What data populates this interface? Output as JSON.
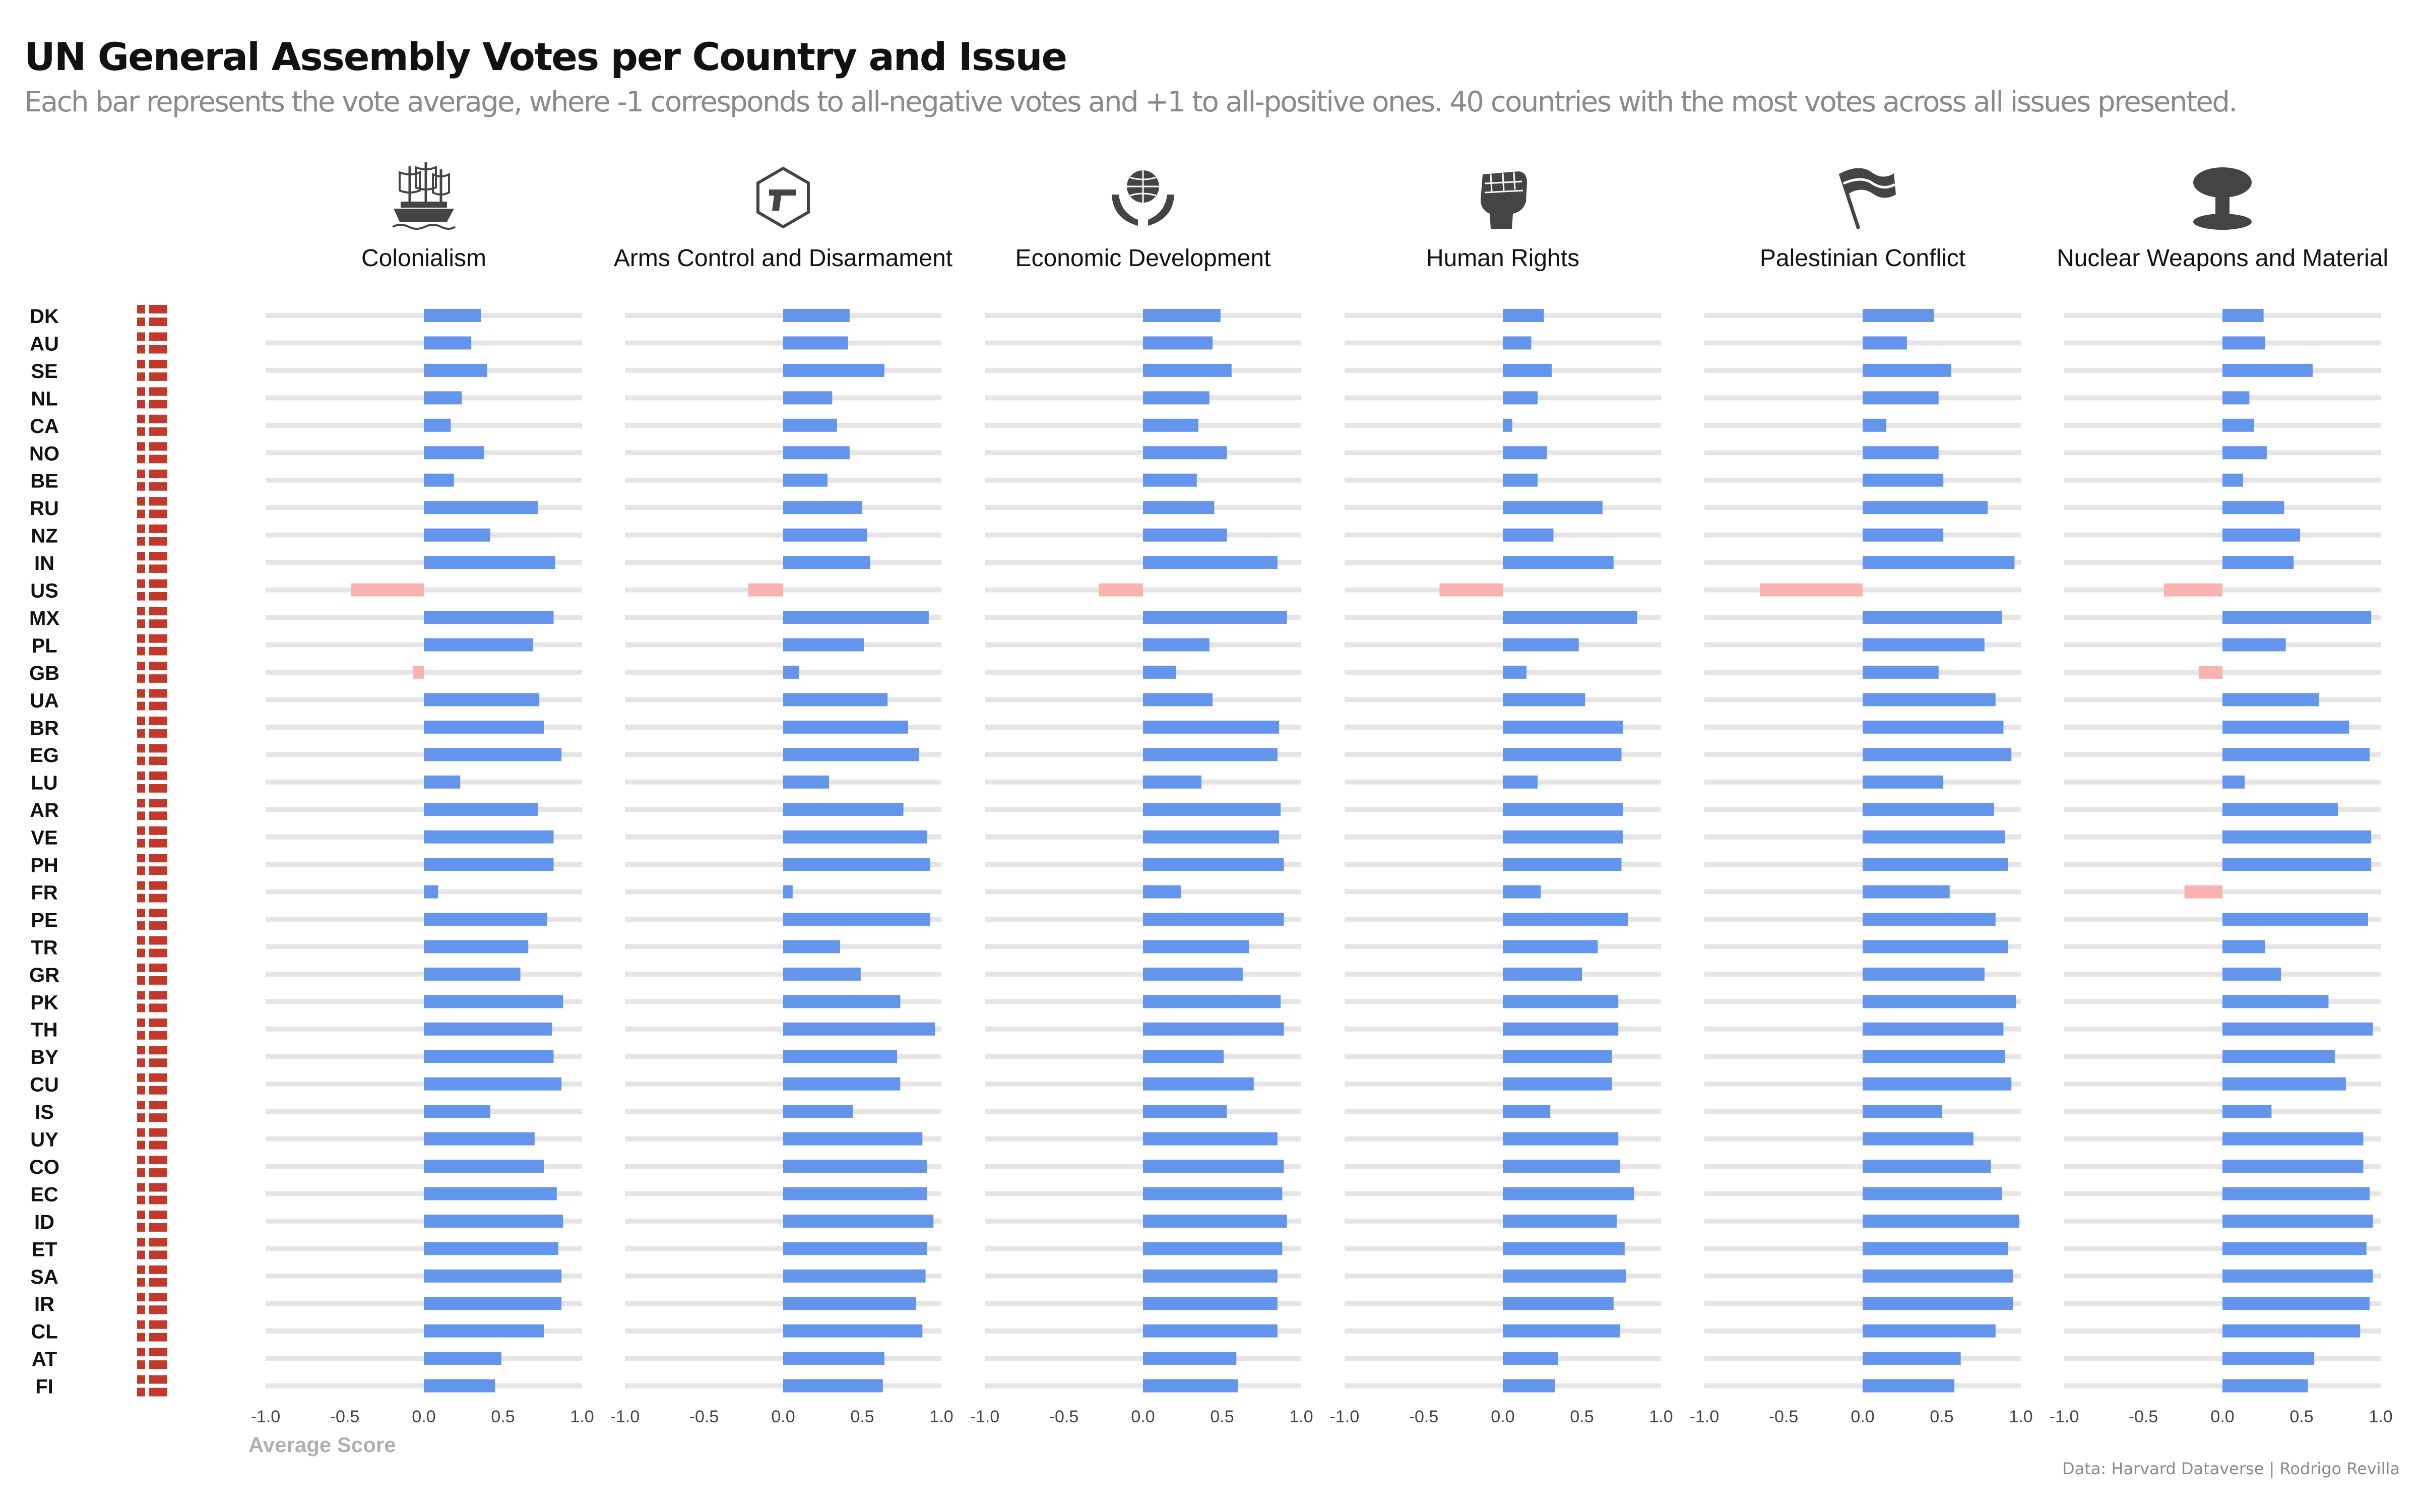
{
  "chart_data": {
    "type": "bar",
    "orientation": "horizontal",
    "title": "UN General Assembly Votes per Country and Issue",
    "subtitle": "Each bar represents the vote average, where -1 corresponds to all-negative votes and +1 to all-positive ones. 40 countries with the most votes across all issues presented.",
    "xlabel": "Average Score",
    "caption": "Data: Harvard Dataverse | Rodrigo Revilla",
    "xlim": [
      -1.0,
      1.0
    ],
    "xticks": [
      "-1.0",
      "-0.5",
      "0.0",
      "0.5",
      "1.0"
    ],
    "colors": {
      "positive": "#6495ED",
      "negative": "#F9B4B1",
      "track": "#E5E5E5"
    },
    "categories": [
      "DK",
      "AU",
      "SE",
      "NL",
      "CA",
      "NO",
      "BE",
      "RU",
      "NZ",
      "IN",
      "US",
      "MX",
      "PL",
      "GB",
      "UA",
      "BR",
      "EG",
      "LU",
      "AR",
      "VE",
      "PH",
      "FR",
      "PE",
      "TR",
      "GR",
      "PK",
      "TH",
      "BY",
      "CU",
      "IS",
      "UY",
      "CO",
      "EC",
      "ID",
      "ET",
      "SA",
      "IR",
      "CL",
      "AT",
      "FI"
    ],
    "series": [
      {
        "name": "Colonialism",
        "icon": "ship-icon",
        "values": [
          0.36,
          0.3,
          0.4,
          0.24,
          0.17,
          0.38,
          0.19,
          0.72,
          0.42,
          0.83,
          -0.46,
          0.82,
          0.69,
          -0.07,
          0.73,
          0.76,
          0.87,
          0.23,
          0.72,
          0.82,
          0.82,
          0.09,
          0.78,
          0.66,
          0.61,
          0.88,
          0.81,
          0.82,
          0.87,
          0.42,
          0.7,
          0.76,
          0.84,
          0.88,
          0.85,
          0.87,
          0.87,
          0.76,
          0.49,
          0.45
        ]
      },
      {
        "name": "Arms Control and Disarmament",
        "icon": "gun-icon",
        "values": [
          0.42,
          0.41,
          0.64,
          0.31,
          0.34,
          0.42,
          0.28,
          0.5,
          0.53,
          0.55,
          -0.22,
          0.92,
          0.51,
          0.1,
          0.66,
          0.79,
          0.86,
          0.29,
          0.76,
          0.91,
          0.93,
          0.06,
          0.93,
          0.36,
          0.49,
          0.74,
          0.96,
          0.72,
          0.74,
          0.44,
          0.88,
          0.91,
          0.91,
          0.95,
          0.91,
          0.9,
          0.84,
          0.88,
          0.64,
          0.63
        ]
      },
      {
        "name": "Economic Development",
        "icon": "globe-hands-icon",
        "values": [
          0.49,
          0.44,
          0.56,
          0.42,
          0.35,
          0.53,
          0.34,
          0.45,
          0.53,
          0.85,
          -0.28,
          0.91,
          0.42,
          0.21,
          0.44,
          0.86,
          0.85,
          0.37,
          0.87,
          0.86,
          0.89,
          0.24,
          0.89,
          0.67,
          0.63,
          0.87,
          0.89,
          0.51,
          0.7,
          0.53,
          0.85,
          0.89,
          0.88,
          0.91,
          0.88,
          0.85,
          0.85,
          0.85,
          0.59,
          0.6
        ]
      },
      {
        "name": "Human Rights",
        "icon": "fist-icon",
        "values": [
          0.26,
          0.18,
          0.31,
          0.22,
          0.06,
          0.28,
          0.22,
          0.63,
          0.32,
          0.7,
          -0.4,
          0.85,
          0.48,
          0.15,
          0.52,
          0.76,
          0.75,
          0.22,
          0.76,
          0.76,
          0.75,
          0.24,
          0.79,
          0.6,
          0.5,
          0.73,
          0.73,
          0.69,
          0.69,
          0.3,
          0.73,
          0.74,
          0.83,
          0.72,
          0.77,
          0.78,
          0.7,
          0.74,
          0.35,
          0.33
        ]
      },
      {
        "name": "Palestinian Conflict",
        "icon": "flag-icon",
        "values": [
          0.45,
          0.28,
          0.56,
          0.48,
          0.15,
          0.48,
          0.51,
          0.79,
          0.51,
          0.96,
          -0.65,
          0.88,
          0.77,
          0.48,
          0.84,
          0.89,
          0.94,
          0.51,
          0.83,
          0.9,
          0.92,
          0.55,
          0.84,
          0.92,
          0.77,
          0.97,
          0.89,
          0.9,
          0.94,
          0.5,
          0.7,
          0.81,
          0.88,
          0.99,
          0.92,
          0.95,
          0.95,
          0.84,
          0.62,
          0.58
        ]
      },
      {
        "name": "Nuclear Weapons and Material",
        "icon": "mushroom-cloud-icon",
        "values": [
          0.26,
          0.27,
          0.57,
          0.17,
          0.2,
          0.28,
          0.13,
          0.39,
          0.49,
          0.45,
          -0.37,
          0.94,
          0.4,
          -0.15,
          0.61,
          0.8,
          0.93,
          0.14,
          0.73,
          0.94,
          0.94,
          -0.24,
          0.92,
          0.27,
          0.37,
          0.67,
          0.95,
          0.71,
          0.78,
          0.31,
          0.89,
          0.89,
          0.93,
          0.95,
          0.91,
          0.95,
          0.93,
          0.87,
          0.58,
          0.54
        ]
      }
    ]
  }
}
